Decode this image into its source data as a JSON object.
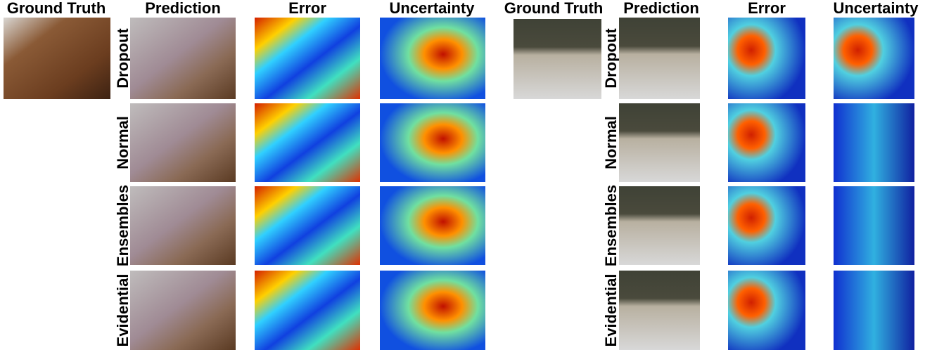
{
  "panels": [
    {
      "headers": [
        "Ground Truth",
        "Prediction",
        "Error",
        "Uncertainty"
      ],
      "rows": [
        "Dropout",
        "Normal",
        "Ensembles",
        "Evidential"
      ]
    },
    {
      "headers": [
        "Ground Truth",
        "Prediction",
        "Error",
        "Uncertainty"
      ],
      "rows": [
        "Dropout",
        "Normal",
        "Ensembles",
        "Evidential"
      ]
    }
  ]
}
